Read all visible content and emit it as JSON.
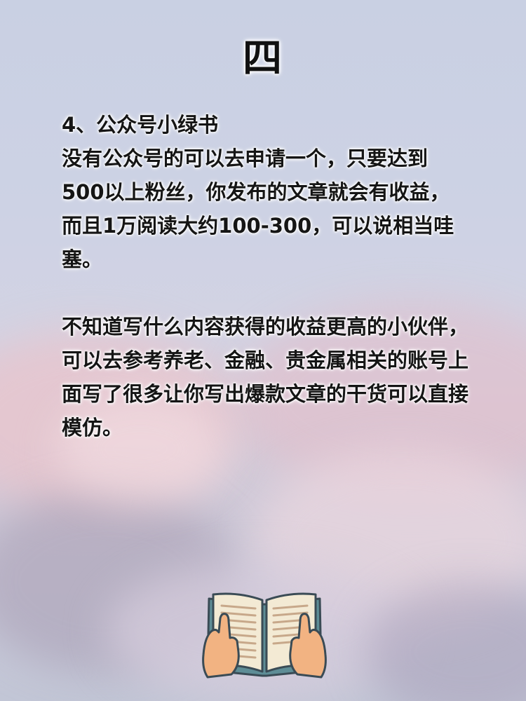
{
  "heading": "四",
  "section_title": "4、公众号小绿书",
  "paragraphs": [
    "没有公众号的可以去申请一个，只要达到500以上粉丝，你发布的文章就会有收益，而且1万阅读大约100-300，可以说相当哇塞。",
    "不知道写什么内容获得的收益更高的小伙伴，可以去参考养老、金融、贵金属相关的账号上面写了很多让你写出爆款文章的干货可以直接模仿。"
  ],
  "illustration": "open-book-with-hands-icon"
}
